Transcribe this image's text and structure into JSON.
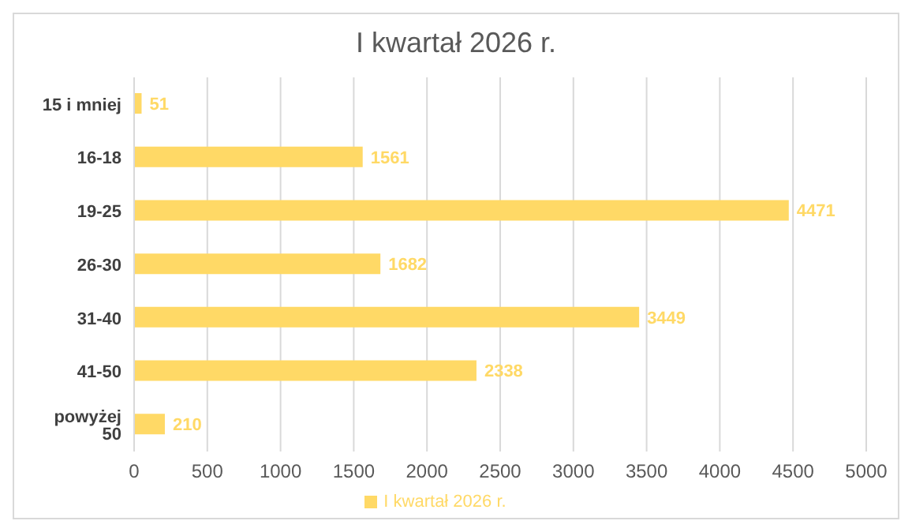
{
  "chart_data": {
    "type": "bar",
    "orientation": "horizontal",
    "title": "I kwartał 2026 r.",
    "categories": [
      "15 i mniej",
      "16-18",
      "19-25",
      "26-30",
      "31-40",
      "41-50",
      "powyżej 50"
    ],
    "series": [
      {
        "name": "I kwartał 2026 r.",
        "color": "#ffd966",
        "values": [
          51,
          1561,
          4471,
          1682,
          3449,
          2338,
          210
        ]
      }
    ],
    "xlim": [
      0,
      5000
    ],
    "xticks": [
      0,
      500,
      1000,
      1500,
      2000,
      2500,
      3000,
      3500,
      4000,
      4500,
      5000
    ],
    "grid": "x",
    "legend": "bottom",
    "data_labels": true
  }
}
